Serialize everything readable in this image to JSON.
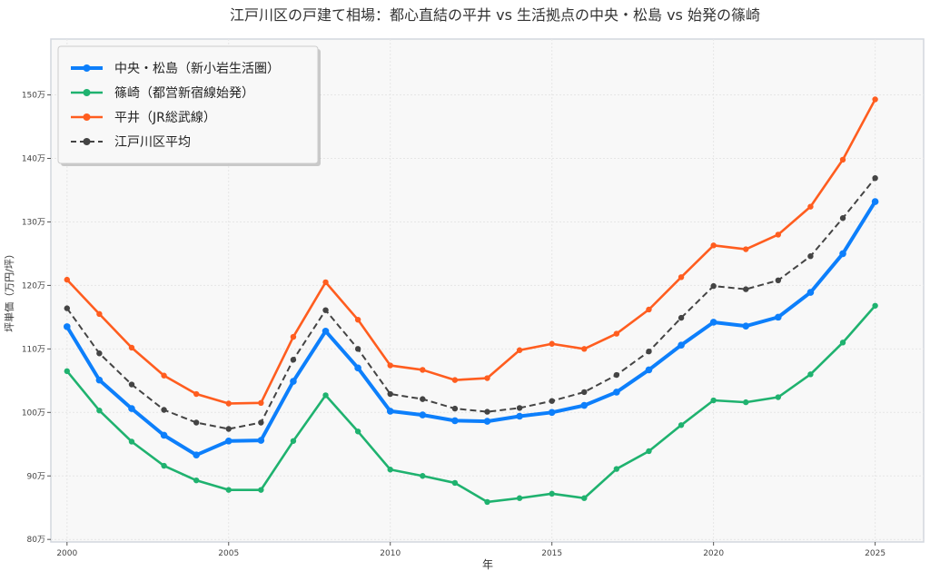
{
  "chart_data": {
    "type": "line",
    "title": "江戸川区の戸建て相場：都心直結の平井 vs 生活拠点の中央・松島 vs 始発の篠崎",
    "xlabel": "年",
    "ylabel": "坪単価（万円/坪）",
    "xlim": [
      1999.5,
      2026.5
    ],
    "ylim": [
      79.6,
      158.8
    ],
    "grid": true,
    "legend_position": "top-left",
    "x_ticks": [
      2000,
      2005,
      2010,
      2015,
      2020,
      2025
    ],
    "x_tick_labels": [
      "2000",
      "2005",
      "2010",
      "2015",
      "2020",
      "2025"
    ],
    "y_ticks": [
      80,
      90,
      100,
      110,
      120,
      130,
      140,
      150
    ],
    "y_tick_labels": [
      "80万",
      "90万",
      "100万",
      "110万",
      "120万",
      "130万",
      "140万",
      "150万"
    ],
    "x": [
      2000,
      2001,
      2002,
      2003,
      2004,
      2005,
      2006,
      2007,
      2008,
      2009,
      2010,
      2011,
      2012,
      2013,
      2014,
      2015,
      2016,
      2017,
      2018,
      2019,
      2020,
      2021,
      2022,
      2023,
      2024,
      2025
    ],
    "series": [
      {
        "name": "中央・松島（新小岩生活圏）",
        "color": "#0d7ffb",
        "style": "solid",
        "width": 4,
        "values": [
          113.5,
          105.1,
          100.6,
          96.4,
          93.3,
          95.5,
          95.6,
          104.9,
          112.8,
          107.0,
          100.2,
          99.6,
          98.7,
          98.6,
          99.4,
          100.0,
          101.1,
          103.2,
          106.7,
          110.6,
          114.2,
          113.6,
          115.0,
          118.9,
          125.0,
          133.2
        ]
      },
      {
        "name": "篠崎（都営新宿線始発）",
        "color": "#1fb26f",
        "style": "solid",
        "width": 2.6,
        "values": [
          106.5,
          100.3,
          95.4,
          91.6,
          89.3,
          87.8,
          87.8,
          95.5,
          102.7,
          97.0,
          91.0,
          90.0,
          88.9,
          85.9,
          86.5,
          87.2,
          86.5,
          91.1,
          93.9,
          98.0,
          101.9,
          101.6,
          102.4,
          106.0,
          111.0,
          116.8
        ]
      },
      {
        "name": "平井（JR総武線）",
        "color": "#ff5d1f",
        "style": "solid",
        "width": 2.6,
        "values": [
          120.9,
          115.5,
          110.2,
          105.8,
          102.9,
          101.4,
          101.5,
          111.9,
          120.5,
          114.6,
          107.4,
          106.7,
          105.1,
          105.4,
          109.8,
          110.8,
          110.0,
          112.4,
          116.2,
          121.3,
          126.3,
          125.7,
          128.0,
          132.4,
          139.8,
          149.3
        ]
      },
      {
        "name": "江戸川区平均",
        "color": "#444444",
        "style": "dashed",
        "width": 2,
        "values": [
          116.4,
          109.3,
          104.4,
          100.4,
          98.4,
          97.4,
          98.4,
          108.3,
          116.1,
          110.0,
          102.9,
          102.1,
          100.6,
          100.1,
          100.7,
          101.8,
          103.2,
          105.9,
          109.6,
          114.9,
          119.9,
          119.4,
          120.8,
          124.6,
          130.6,
          136.9
        ]
      }
    ]
  }
}
